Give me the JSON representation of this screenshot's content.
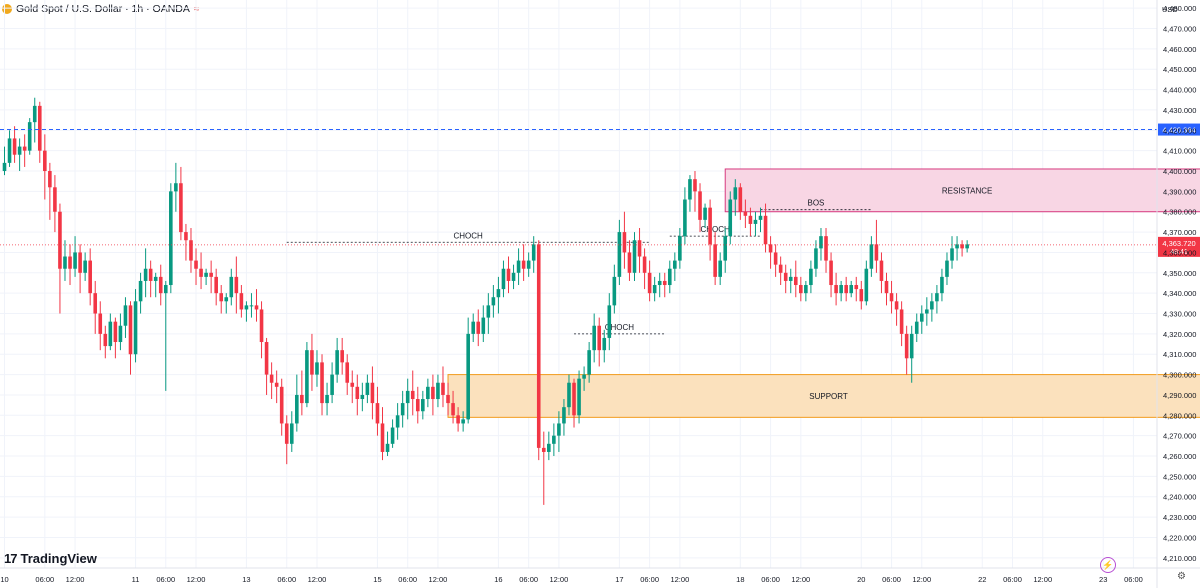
{
  "header": {
    "symbol": "Gold Spot / U.S. Dollar · 1h · OANDA",
    "wave_icon": "≈"
  },
  "brand": {
    "name": "TradingView",
    "logo": "17"
  },
  "currency_label": "USD",
  "chart_data": {
    "type": "candlestick",
    "title": "Gold Spot / U.S. Dollar · 1h · OANDA",
    "ylim": [
      4205,
      4484
    ],
    "yticks": [
      4210,
      4220,
      4230,
      4240,
      4250,
      4260,
      4270,
      4280,
      4290,
      4300,
      4310,
      4320,
      4330,
      4340,
      4350,
      4360,
      4370,
      4380,
      4390,
      4400,
      4410,
      4420,
      4430,
      4440,
      4450,
      4460,
      4470,
      4480
    ],
    "xticks": [
      {
        "i": 0,
        "label": "10"
      },
      {
        "i": 8,
        "label": "06:00"
      },
      {
        "i": 14,
        "label": "12:00"
      },
      {
        "i": 26,
        "label": "11"
      },
      {
        "i": 32,
        "label": "06:00"
      },
      {
        "i": 38,
        "label": "12:00"
      },
      {
        "i": 48,
        "label": "13"
      },
      {
        "i": 56,
        "label": "06:00"
      },
      {
        "i": 62,
        "label": "12:00"
      },
      {
        "i": 74,
        "label": "15"
      },
      {
        "i": 80,
        "label": "06:00"
      },
      {
        "i": 86,
        "label": "12:00"
      },
      {
        "i": 98,
        "label": "16"
      },
      {
        "i": 104,
        "label": "06:00"
      },
      {
        "i": 110,
        "label": "12:00"
      },
      {
        "i": 122,
        "label": "17"
      },
      {
        "i": 128,
        "label": "06:00"
      },
      {
        "i": 134,
        "label": "12:00"
      },
      {
        "i": 146,
        "label": "18"
      },
      {
        "i": 152,
        "label": "06:00"
      },
      {
        "i": 158,
        "label": "12:00"
      },
      {
        "i": 170,
        "label": "20"
      },
      {
        "i": 176,
        "label": "06:00"
      },
      {
        "i": 182,
        "label": "12:00"
      },
      {
        "i": 194,
        "label": "22"
      },
      {
        "i": 200,
        "label": "06:00"
      },
      {
        "i": 206,
        "label": "12:00"
      },
      {
        "i": 218,
        "label": "23"
      },
      {
        "i": 224,
        "label": "06:00"
      }
    ],
    "candles": [
      [
        4400,
        4412,
        4404,
        4398
      ],
      [
        4404,
        4420,
        4416,
        4402
      ],
      [
        4416,
        4422,
        4408,
        4404
      ],
      [
        4408,
        4416,
        4412,
        4400
      ],
      [
        4412,
        4418,
        4410,
        4402
      ],
      [
        4410,
        4426,
        4424,
        4408
      ],
      [
        4424,
        4436,
        4432,
        4414
      ],
      [
        4432,
        4434,
        4410,
        4404
      ],
      [
        4410,
        4418,
        4400,
        4386
      ],
      [
        4400,
        4404,
        4392,
        4376
      ],
      [
        4392,
        4398,
        4380,
        4370
      ],
      [
        4380,
        4384,
        4352,
        4330
      ],
      [
        4352,
        4366,
        4358,
        4346
      ],
      [
        4358,
        4364,
        4352,
        4344
      ],
      [
        4352,
        4368,
        4360,
        4348
      ],
      [
        4360,
        4364,
        4350,
        4340
      ],
      [
        4350,
        4360,
        4356,
        4346
      ],
      [
        4356,
        4362,
        4340,
        4334
      ],
      [
        4340,
        4346,
        4330,
        4320
      ],
      [
        4330,
        4336,
        4320,
        4312
      ],
      [
        4320,
        4324,
        4314,
        4308
      ],
      [
        4314,
        4330,
        4326,
        4312
      ],
      [
        4326,
        4328,
        4316,
        4308
      ],
      [
        4316,
        4330,
        4324,
        4312
      ],
      [
        4324,
        4338,
        4334,
        4318
      ],
      [
        4334,
        4336,
        4310,
        4300
      ],
      [
        4310,
        4342,
        4336,
        4306
      ],
      [
        4336,
        4350,
        4346,
        4330
      ],
      [
        4346,
        4362,
        4352,
        4338
      ],
      [
        4352,
        4356,
        4346,
        4338
      ],
      [
        4346,
        4350,
        4348,
        4338
      ],
      [
        4348,
        4354,
        4340,
        4334
      ],
      [
        4340,
        4346,
        4344,
        4292
      ],
      [
        4344,
        4394,
        4390,
        4340
      ],
      [
        4390,
        4404,
        4394,
        4380
      ],
      [
        4394,
        4402,
        4370,
        4366
      ],
      [
        4370,
        4374,
        4366,
        4356
      ],
      [
        4366,
        4372,
        4356,
        4350
      ],
      [
        4356,
        4362,
        4352,
        4344
      ],
      [
        4352,
        4360,
        4348,
        4342
      ],
      [
        4348,
        4352,
        4350,
        4344
      ],
      [
        4350,
        4356,
        4348,
        4340
      ],
      [
        4348,
        4352,
        4340,
        4334
      ],
      [
        4340,
        4344,
        4336,
        4330
      ],
      [
        4336,
        4340,
        4338,
        4330
      ],
      [
        4338,
        4352,
        4348,
        4334
      ],
      [
        4348,
        4358,
        4340,
        4330
      ],
      [
        4340,
        4344,
        4332,
        4328
      ],
      [
        4332,
        4336,
        4334,
        4326
      ],
      [
        4334,
        4340,
        4334,
        4328
      ],
      [
        4334,
        4342,
        4332,
        4326
      ],
      [
        4332,
        4336,
        4316,
        4308
      ],
      [
        4316,
        4318,
        4300,
        4290
      ],
      [
        4300,
        4306,
        4296,
        4288
      ],
      [
        4296,
        4302,
        4294,
        4286
      ],
      [
        4294,
        4298,
        4276,
        4270
      ],
      [
        4276,
        4280,
        4266,
        4256
      ],
      [
        4266,
        4282,
        4276,
        4262
      ],
      [
        4276,
        4300,
        4290,
        4272
      ],
      [
        4290,
        4302,
        4286,
        4280
      ],
      [
        4286,
        4316,
        4312,
        4284
      ],
      [
        4312,
        4320,
        4300,
        4292
      ],
      [
        4300,
        4312,
        4306,
        4294
      ],
      [
        4306,
        4310,
        4286,
        4280
      ],
      [
        4286,
        4296,
        4290,
        4280
      ],
      [
        4290,
        4306,
        4300,
        4286
      ],
      [
        4300,
        4318,
        4312,
        4296
      ],
      [
        4312,
        4318,
        4306,
        4300
      ],
      [
        4306,
        4310,
        4296,
        4290
      ],
      [
        4296,
        4302,
        4294,
        4286
      ],
      [
        4294,
        4300,
        4288,
        4280
      ],
      [
        4288,
        4296,
        4290,
        4282
      ],
      [
        4290,
        4300,
        4296,
        4286
      ],
      [
        4296,
        4304,
        4286,
        4278
      ],
      [
        4286,
        4294,
        4276,
        4270
      ],
      [
        4276,
        4284,
        4262,
        4258
      ],
      [
        4262,
        4272,
        4266,
        4260
      ],
      [
        4266,
        4278,
        4274,
        4264
      ],
      [
        4274,
        4286,
        4280,
        4268
      ],
      [
        4280,
        4292,
        4286,
        4274
      ],
      [
        4286,
        4298,
        4292,
        4278
      ],
      [
        4292,
        4302,
        4288,
        4280
      ],
      [
        4288,
        4294,
        4282,
        4276
      ],
      [
        4282,
        4292,
        4288,
        4278
      ],
      [
        4288,
        4298,
        4294,
        4284
      ],
      [
        4294,
        4300,
        4288,
        4280
      ],
      [
        4288,
        4300,
        4296,
        4284
      ],
      [
        4296,
        4304,
        4290,
        4284
      ],
      [
        4290,
        4296,
        4286,
        4280
      ],
      [
        4286,
        4292,
        4280,
        4276
      ],
      [
        4280,
        4284,
        4276,
        4272
      ],
      [
        4276,
        4282,
        4278,
        4272
      ],
      [
        4278,
        4328,
        4320,
        4276
      ],
      [
        4320,
        4330,
        4326,
        4316
      ],
      [
        4326,
        4332,
        4320,
        4314
      ],
      [
        4320,
        4334,
        4328,
        4316
      ],
      [
        4328,
        4340,
        4334,
        4320
      ],
      [
        4334,
        4344,
        4338,
        4328
      ],
      [
        4338,
        4348,
        4342,
        4330
      ],
      [
        4342,
        4356,
        4352,
        4338
      ],
      [
        4352,
        4358,
        4346,
        4340
      ],
      [
        4346,
        4354,
        4350,
        4342
      ],
      [
        4350,
        4362,
        4356,
        4344
      ],
      [
        4356,
        4364,
        4352,
        4346
      ],
      [
        4352,
        4360,
        4356,
        4348
      ],
      [
        4356,
        4368,
        4364,
        4350
      ],
      [
        4364,
        4366,
        4264,
        4258
      ],
      [
        4264,
        4272,
        4262,
        4236
      ],
      [
        4262,
        4272,
        4266,
        4258
      ],
      [
        4266,
        4276,
        4270,
        4260
      ],
      [
        4270,
        4282,
        4276,
        4262
      ],
      [
        4276,
        4288,
        4284,
        4270
      ],
      [
        4284,
        4300,
        4296,
        4280
      ],
      [
        4296,
        4298,
        4280,
        4274
      ],
      [
        4280,
        4302,
        4298,
        4276
      ],
      [
        4298,
        4304,
        4300,
        4292
      ],
      [
        4300,
        4316,
        4312,
        4296
      ],
      [
        4312,
        4330,
        4324,
        4306
      ],
      [
        4324,
        4328,
        4312,
        4304
      ],
      [
        4312,
        4322,
        4318,
        4306
      ],
      [
        4318,
        4340,
        4334,
        4312
      ],
      [
        4334,
        4354,
        4348,
        4330
      ],
      [
        4348,
        4376,
        4370,
        4344
      ],
      [
        4370,
        4380,
        4360,
        4352
      ],
      [
        4360,
        4366,
        4350,
        4346
      ],
      [
        4350,
        4370,
        4366,
        4346
      ],
      [
        4366,
        4372,
        4358,
        4350
      ],
      [
        4358,
        4362,
        4350,
        4342
      ],
      [
        4350,
        4356,
        4340,
        4336
      ],
      [
        4340,
        4348,
        4344,
        4336
      ],
      [
        4344,
        4350,
        4346,
        4338
      ],
      [
        4346,
        4350,
        4344,
        4338
      ],
      [
        4344,
        4356,
        4352,
        4340
      ],
      [
        4352,
        4360,
        4356,
        4346
      ],
      [
        4356,
        4372,
        4368,
        4352
      ],
      [
        4368,
        4392,
        4386,
        4364
      ],
      [
        4386,
        4398,
        4396,
        4380
      ],
      [
        4396,
        4400,
        4390,
        4380
      ],
      [
        4390,
        4394,
        4376,
        4370
      ],
      [
        4376,
        4384,
        4382,
        4372
      ],
      [
        4382,
        4386,
        4364,
        4356
      ],
      [
        4364,
        4370,
        4348,
        4344
      ],
      [
        4348,
        4360,
        4356,
        4344
      ],
      [
        4356,
        4372,
        4368,
        4350
      ],
      [
        4368,
        4390,
        4386,
        4364
      ],
      [
        4386,
        4396,
        4392,
        4378
      ],
      [
        4392,
        4394,
        4380,
        4376
      ],
      [
        4380,
        4386,
        4378,
        4372
      ],
      [
        4378,
        4382,
        4374,
        4368
      ],
      [
        4374,
        4380,
        4376,
        4368
      ],
      [
        4376,
        4382,
        4378,
        4370
      ],
      [
        4378,
        4384,
        4364,
        4360
      ],
      [
        4364,
        4368,
        4360,
        4352
      ],
      [
        4360,
        4364,
        4354,
        4348
      ],
      [
        4354,
        4358,
        4350,
        4344
      ],
      [
        4350,
        4354,
        4346,
        4340
      ],
      [
        4346,
        4352,
        4348,
        4340
      ],
      [
        4348,
        4356,
        4344,
        4338
      ],
      [
        4344,
        4348,
        4340,
        4336
      ],
      [
        4340,
        4346,
        4344,
        4336
      ],
      [
        4344,
        4356,
        4352,
        4340
      ],
      [
        4352,
        4366,
        4362,
        4348
      ],
      [
        4362,
        4372,
        4368,
        4356
      ],
      [
        4368,
        4372,
        4356,
        4350
      ],
      [
        4356,
        4360,
        4344,
        4338
      ],
      [
        4344,
        4350,
        4340,
        4334
      ],
      [
        4340,
        4346,
        4344,
        4336
      ],
      [
        4344,
        4348,
        4340,
        4336
      ],
      [
        4340,
        4346,
        4344,
        4338
      ],
      [
        4344,
        4348,
        4342,
        4336
      ],
      [
        4342,
        4346,
        4336,
        4332
      ],
      [
        4336,
        4356,
        4352,
        4334
      ],
      [
        4352,
        4368,
        4364,
        4348
      ],
      [
        4364,
        4376,
        4356,
        4350
      ],
      [
        4356,
        4360,
        4346,
        4340
      ],
      [
        4346,
        4350,
        4340,
        4334
      ],
      [
        4340,
        4346,
        4336,
        4330
      ],
      [
        4336,
        4340,
        4332,
        4324
      ],
      [
        4332,
        4336,
        4320,
        4314
      ],
      [
        4320,
        4324,
        4308,
        4300
      ],
      [
        4308,
        4324,
        4320,
        4296
      ],
      [
        4320,
        4330,
        4326,
        4316
      ],
      [
        4326,
        4334,
        4330,
        4320
      ],
      [
        4330,
        4338,
        4332,
        4324
      ],
      [
        4332,
        4340,
        4336,
        4326
      ],
      [
        4336,
        4344,
        4340,
        4330
      ],
      [
        4340,
        4352,
        4348,
        4336
      ],
      [
        4348,
        4360,
        4356,
        4344
      ],
      [
        4356,
        4368,
        4362,
        4352
      ],
      [
        4362,
        4368,
        4364,
        4356
      ],
      [
        4364,
        4366,
        4362,
        4358
      ],
      [
        4362,
        4366,
        4364,
        4360
      ]
    ],
    "horizontal_line": {
      "price": 4420.364,
      "label": "4,420.364"
    },
    "current_price": {
      "price": 4363.72,
      "label": "4,363.720",
      "countdown": "48:41"
    },
    "zones": [
      {
        "name": "RESISTANCE",
        "top": 4401,
        "bottom": 4380,
        "x0": 143,
        "x1": 239,
        "fill": "#f8d6e4",
        "stroke": "#d63a7f"
      },
      {
        "name": "SUPPORT",
        "top": 4300,
        "bottom": 4279,
        "x0": 88,
        "x1": 239,
        "fill": "#fbe1bd",
        "stroke": "#f29b1c"
      }
    ],
    "annotations": [
      {
        "label": "CHOCH",
        "price": 4365,
        "x0": 56,
        "x1": 128
      },
      {
        "label": "CHOCH",
        "price": 4320,
        "x0": 113,
        "x1": 131
      },
      {
        "label": "CHOCH",
        "price": 4368,
        "x0": 132,
        "x1": 150
      },
      {
        "label": "BOS",
        "price": 4381,
        "x0": 150,
        "x1": 172
      }
    ],
    "colors": {
      "up": "#089981",
      "down": "#f23645",
      "grid": "#f0f3fa",
      "hline": "#2962ff"
    }
  }
}
